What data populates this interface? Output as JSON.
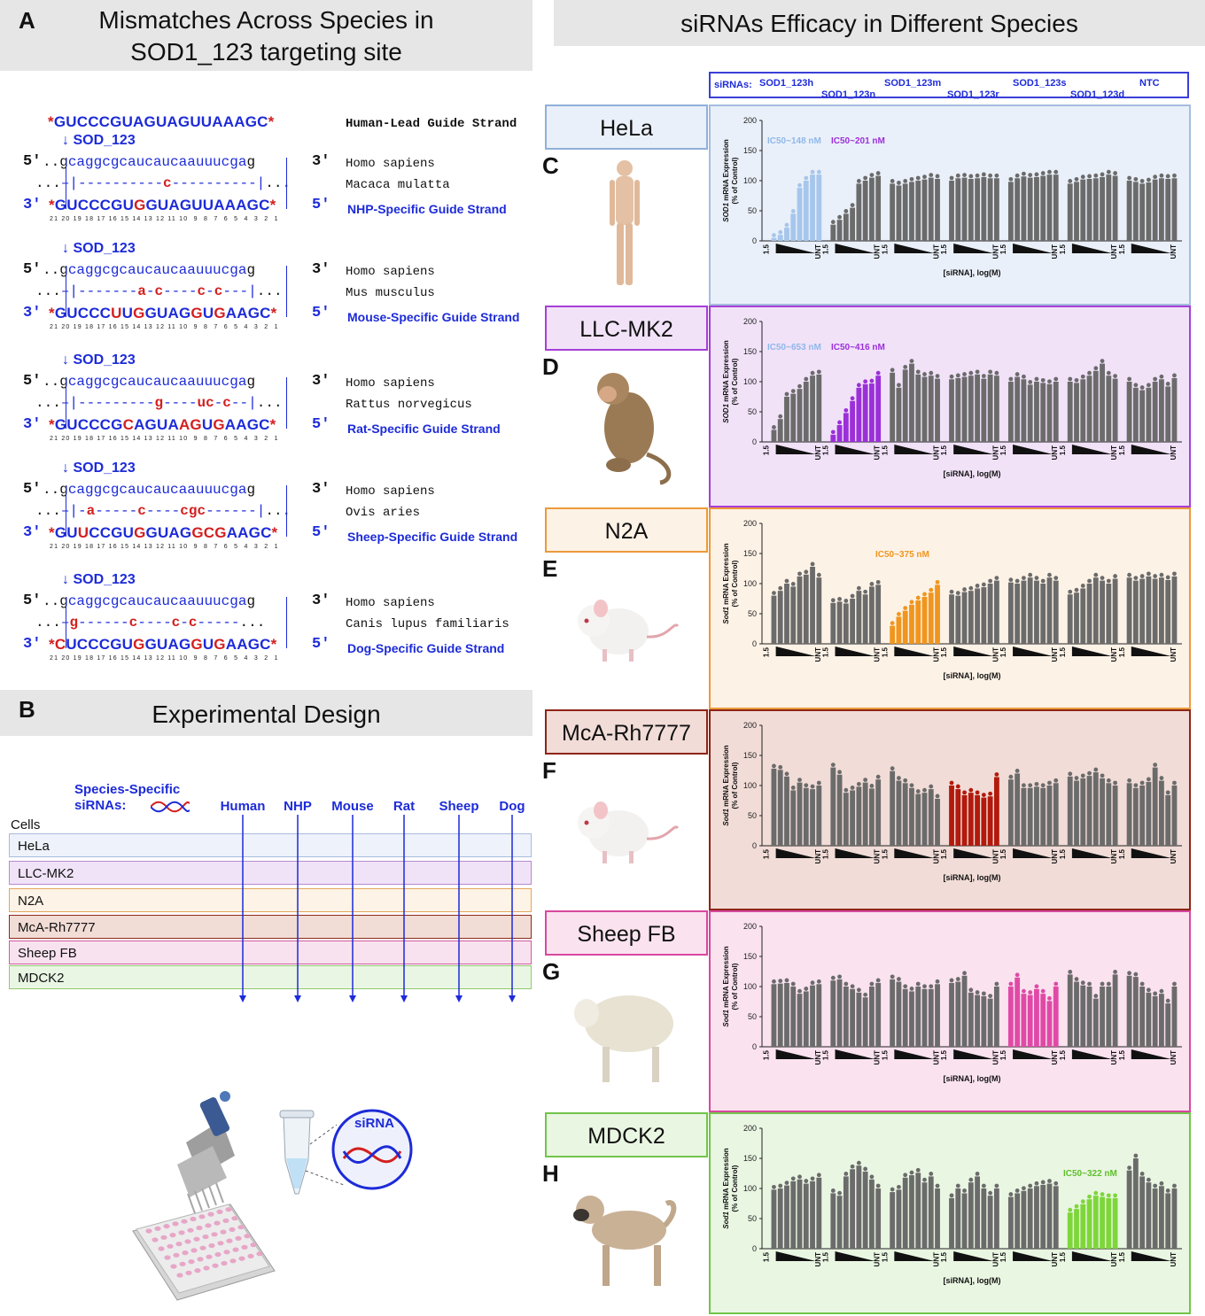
{
  "panel_a": {
    "letter": "A",
    "title_line1": "Mismatches Across Species in",
    "title_line2": "SOD1_123 targeting site",
    "lead_guide": "GUCCCGUAGUAGUUAAAGC",
    "lead_label": "Human-Lead Guide Strand",
    "target_label": "SOD_123",
    "human_seq": "caggcgcaucaucaauuucga",
    "human_name": "Homo sapiens",
    "blocks": [
      {
        "species": "Macaca mulatta",
        "mismatch": "...–|----------c----------|...",
        "guide": "GUCCCGUGGUAGUUAAAGC",
        "guide_label": "NHP-Specific Guide Strand"
      },
      {
        "species": "Mus musculus",
        "mismatch": "...–|-------a-c----c-c---|...",
        "guide": "GUCCCUUGGUAGGUGAAGC",
        "guide_label": "Mouse-Specific Guide Strand"
      },
      {
        "species": "Rattus norvegicus",
        "mismatch": "...–|---------g----uc-c--|...",
        "guide": "GUCCCGCAGUAAGUGAAGC",
        "guide_label": "Rat-Specific Guide Strand"
      },
      {
        "species": "Ovis aries",
        "mismatch": "...–|-a-----c----cgc------|...",
        "guide": "GUUCCGUGGUAGGCGAAGC",
        "guide_label": "Sheep-Specific Guide Strand"
      },
      {
        "species": "Canis lupus familiaris",
        "mismatch": "...–g------c----c-c-----...",
        "guide": "CUCCCGUGGUAGGUGAAGC",
        "guide_label": "Dog-Specific Guide Strand"
      }
    ],
    "positions": "21 20 19 18 17 16 15 14 13 12 11 10  9  8  7  6  5  4  3  2  1"
  },
  "panel_b": {
    "letter": "B",
    "title": "Experimental Design",
    "sirna_label": "Species-Specific siRNAs:",
    "species_cols": [
      "Human",
      "NHP",
      "Mouse",
      "Rat",
      "Sheep",
      "Dog"
    ],
    "cells_label": "Cells",
    "cells": [
      "HeLa",
      "LLC-MK2",
      "N2A",
      "McA-Rh7777",
      "Sheep FB",
      "MDCK2"
    ],
    "tube_label": "siRNA"
  },
  "panel_right": {
    "title": "siRNAs Efficacy in Different Species",
    "legend_prefix": "siRNAs:",
    "legend_items": [
      "SOD1_123h",
      "SOD1_123n",
      "SOD1_123m",
      "SOD1_123r",
      "SOD1_123s",
      "SOD1_123d",
      "NTC"
    ],
    "xlabel": "[siRNA], log(M)",
    "x_start": "1.5",
    "x_end": "UNT"
  },
  "colors": {
    "accent_blue": "#1d2bd8",
    "mismatch_red": "#d31f1f",
    "bar_gray": "#6b6b6b",
    "hela": "#a6c6ec",
    "llc": "#9b30d9",
    "n2a": "#f0961e",
    "mca": "#b21a0c",
    "sheep": "#e04aa7",
    "mdck": "#7ed63a"
  },
  "chart_data": [
    {
      "type": "bar",
      "panel": "C",
      "cell": "HeLa",
      "ylabel_gene": "SOD1",
      "ylabel": "mRNA Expression (% of Control)",
      "ylim": [
        0,
        200
      ],
      "yticks": [
        0,
        50,
        100,
        150,
        200
      ],
      "highlight_color": "#a6c6ec",
      "ic50": [
        {
          "text": "IC50~148 nM",
          "color": "#8fb8ea"
        },
        {
          "text": "IC50~201 nM",
          "color": "#9b30d9"
        }
      ],
      "series": [
        {
          "name": "SOD1_123h",
          "values": [
            5,
            10,
            22,
            45,
            88,
            100,
            110,
            110
          ],
          "highlight": true
        },
        {
          "name": "SOD1_123n",
          "values": [
            27,
            35,
            45,
            55,
            95,
            100,
            105,
            108
          ]
        },
        {
          "name": "SOD1_123m",
          "values": [
            95,
            92,
            95,
            98,
            100,
            102,
            105,
            103
          ]
        },
        {
          "name": "SOD1_123r",
          "values": [
            100,
            104,
            105,
            103,
            104,
            106,
            104,
            104
          ]
        },
        {
          "name": "SOD1_123s",
          "values": [
            98,
            104,
            107,
            105,
            106,
            108,
            110,
            110
          ]
        },
        {
          "name": "SOD1_123d",
          "values": [
            95,
            98,
            102,
            103,
            104,
            106,
            110,
            108
          ]
        },
        {
          "name": "NTC",
          "values": [
            100,
            98,
            95,
            97,
            102,
            104,
            103,
            104
          ]
        }
      ]
    },
    {
      "type": "bar",
      "panel": "D",
      "cell": "LLC-MK2",
      "ylabel_gene": "SOD1",
      "ylabel": "mRNA Expression (% of Control)",
      "ylim": [
        0,
        200
      ],
      "yticks": [
        0,
        50,
        100,
        150,
        200
      ],
      "highlight_color": "#9b30d9",
      "ic50": [
        {
          "text": "IC50~653 nM",
          "color": "#8fb8ea"
        },
        {
          "text": "IC50~416 nM",
          "color": "#9b30d9"
        }
      ],
      "series": [
        {
          "name": "SOD1_123h",
          "values": [
            20,
            38,
            75,
            80,
            88,
            100,
            110,
            112
          ]
        },
        {
          "name": "SOD1_123n",
          "values": [
            12,
            28,
            48,
            68,
            90,
            96,
            97,
            110
          ],
          "highlight": true
        },
        {
          "name": "SOD1_123m",
          "values": [
            115,
            90,
            120,
            130,
            112,
            108,
            110,
            105
          ]
        },
        {
          "name": "SOD1_123r",
          "values": [
            104,
            106,
            108,
            110,
            112,
            105,
            112,
            110
          ]
        },
        {
          "name": "SOD1_123s",
          "values": [
            100,
            108,
            104,
            95,
            100,
            98,
            96,
            100
          ]
        },
        {
          "name": "SOD1_123d",
          "values": [
            100,
            98,
            104,
            110,
            118,
            130,
            110,
            105
          ]
        },
        {
          "name": "NTC",
          "values": [
            100,
            90,
            86,
            90,
            100,
            104,
            92,
            106
          ]
        }
      ]
    },
    {
      "type": "bar",
      "panel": "E",
      "cell": "N2A",
      "ylabel_gene": "Sod1",
      "ylabel": "mRNA Expression (% of Control)",
      "ylim": [
        0,
        200
      ],
      "yticks": [
        0,
        50,
        100,
        150,
        200
      ],
      "highlight_color": "#f0961e",
      "ic50": [
        {
          "text": "IC50~375 nM",
          "color": "#f0961e"
        }
      ],
      "series": [
        {
          "name": "SOD1_123h",
          "values": [
            80,
            88,
            100,
            95,
            112,
            115,
            128,
            110
          ]
        },
        {
          "name": "SOD1_123n",
          "values": [
            68,
            70,
            67,
            75,
            88,
            82,
            95,
            98
          ]
        },
        {
          "name": "SOD1_123m",
          "values": [
            30,
            45,
            55,
            65,
            72,
            78,
            85,
            98
          ],
          "highlight": true
        },
        {
          "name": "SOD1_123r",
          "values": [
            82,
            80,
            86,
            88,
            92,
            94,
            100,
            105
          ]
        },
        {
          "name": "SOD1_123s",
          "values": [
            102,
            100,
            105,
            110,
            105,
            100,
            110,
            105
          ]
        },
        {
          "name": "SOD1_123d",
          "values": [
            82,
            85,
            92,
            100,
            110,
            105,
            100,
            108
          ]
        },
        {
          "name": "NTC",
          "values": [
            110,
            105,
            108,
            112,
            108,
            110,
            106,
            112
          ]
        }
      ]
    },
    {
      "type": "bar",
      "panel": "F",
      "cell": "McA-Rh7777",
      "ylabel_gene": "Sod1",
      "ylabel": "mRNA Expression (% of Control)",
      "ylim": [
        0,
        200
      ],
      "yticks": [
        0,
        50,
        100,
        150,
        200
      ],
      "highlight_color": "#b21a0c",
      "ic50": [],
      "series": [
        {
          "name": "SOD1_123h",
          "values": [
            128,
            126,
            115,
            92,
            105,
            96,
            94,
            100
          ]
        },
        {
          "name": "SOD1_123n",
          "values": [
            130,
            118,
            88,
            92,
            98,
            105,
            95,
            110
          ]
        },
        {
          "name": "SOD1_123m",
          "values": [
            124,
            108,
            104,
            96,
            86,
            88,
            94,
            78
          ]
        },
        {
          "name": "SOD1_123r",
          "values": [
            100,
            94,
            84,
            88,
            84,
            80,
            82,
            114
          ],
          "highlight": true
        },
        {
          "name": "SOD1_123s",
          "values": [
            110,
            120,
            96,
            96,
            98,
            96,
            100,
            104
          ]
        },
        {
          "name": "SOD1_123d",
          "values": [
            115,
            108,
            112,
            116,
            122,
            112,
            104,
            100
          ]
        },
        {
          "name": "NTC",
          "values": [
            104,
            96,
            100,
            106,
            130,
            108,
            84,
            100
          ]
        }
      ]
    },
    {
      "type": "bar",
      "panel": "G",
      "cell": "Sheep FB",
      "ylabel_gene": "Sod1",
      "ylabel": "mRNA Expression (% of Control)",
      "ylim": [
        0,
        200
      ],
      "yticks": [
        0,
        50,
        100,
        150,
        200
      ],
      "highlight_color": "#e04aa7",
      "ic50": [],
      "series": [
        {
          "name": "SOD1_123h",
          "values": [
            104,
            105,
            106,
            100,
            88,
            92,
            102,
            104
          ]
        },
        {
          "name": "SOD1_123n",
          "values": [
            110,
            112,
            100,
            96,
            90,
            82,
            100,
            106
          ]
        },
        {
          "name": "SOD1_123m",
          "values": [
            112,
            108,
            96,
            92,
            100,
            96,
            96,
            104
          ]
        },
        {
          "name": "SOD1_123r",
          "values": [
            106,
            108,
            118,
            90,
            86,
            84,
            80,
            100
          ]
        },
        {
          "name": "SOD1_123s",
          "values": [
            100,
            115,
            88,
            86,
            96,
            88,
            76,
            100
          ],
          "highlight": true
        },
        {
          "name": "SOD1_123d",
          "values": [
            120,
            108,
            102,
            100,
            80,
            100,
            100,
            120
          ]
        },
        {
          "name": "NTC",
          "values": [
            118,
            116,
            100,
            90,
            84,
            88,
            72,
            100
          ]
        }
      ]
    },
    {
      "type": "bar",
      "panel": "H",
      "cell": "MDCK2",
      "ylabel_gene": "Sod1",
      "ylabel": "mRNA Expression (% of Control)",
      "ylim": [
        0,
        200
      ],
      "yticks": [
        0,
        50,
        100,
        150,
        200
      ],
      "highlight_color": "#7ed63a",
      "ic50": [
        {
          "text": "IC50~322 nM",
          "color": "#5fbf2b"
        }
      ],
      "series": [
        {
          "name": "SOD1_123h",
          "values": [
            98,
            100,
            105,
            112,
            115,
            108,
            112,
            118
          ]
        },
        {
          "name": "SOD1_123n",
          "values": [
            92,
            88,
            120,
            132,
            138,
            128,
            115,
            100
          ]
        },
        {
          "name": "SOD1_123m",
          "values": [
            94,
            98,
            118,
            122,
            126,
            110,
            120,
            100
          ]
        },
        {
          "name": "SOD1_123r",
          "values": [
            84,
            100,
            92,
            110,
            120,
            100,
            88,
            100
          ]
        },
        {
          "name": "SOD1_123s",
          "values": [
            86,
            92,
            96,
            100,
            104,
            106,
            108,
            104
          ]
        },
        {
          "name": "SOD1_123d",
          "values": [
            60,
            66,
            74,
            82,
            88,
            86,
            84,
            84
          ],
          "highlight": true
        },
        {
          "name": "NTC",
          "values": [
            130,
            150,
            120,
            110,
            100,
            104,
            92,
            100
          ]
        }
      ]
    }
  ]
}
